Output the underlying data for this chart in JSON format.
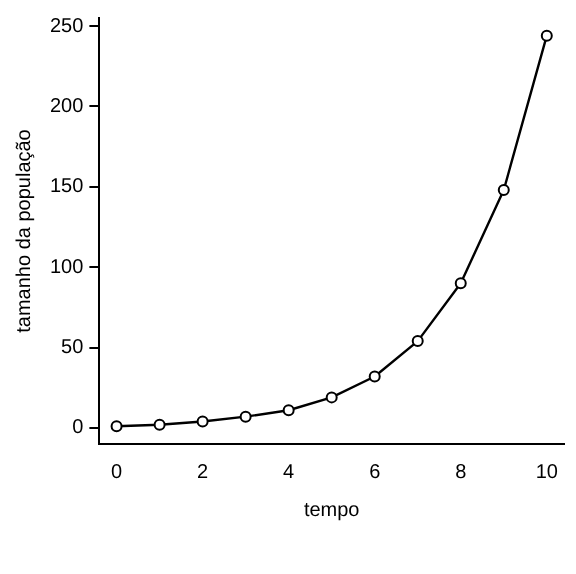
{
  "chart_data": {
    "type": "line",
    "xlabel": "tempo",
    "ylabel": "tamanho da população",
    "x": [
      0,
      1,
      2,
      3,
      4,
      5,
      6,
      7,
      8,
      9,
      10
    ],
    "series": [
      {
        "color": "#000000",
        "values": [
          1,
          2,
          4,
          7,
          11,
          19,
          32,
          54,
          90,
          148,
          244
        ]
      }
    ],
    "xlim": [
      -0.4,
      10.4
    ],
    "ylim": [
      -10,
      255
    ],
    "xticks": [
      0,
      2,
      4,
      6,
      8,
      10
    ],
    "yticks": [
      0,
      50,
      100,
      150,
      200,
      250
    ],
    "marker": "circle",
    "line_style": "solid",
    "grid": false,
    "legend": false
  }
}
